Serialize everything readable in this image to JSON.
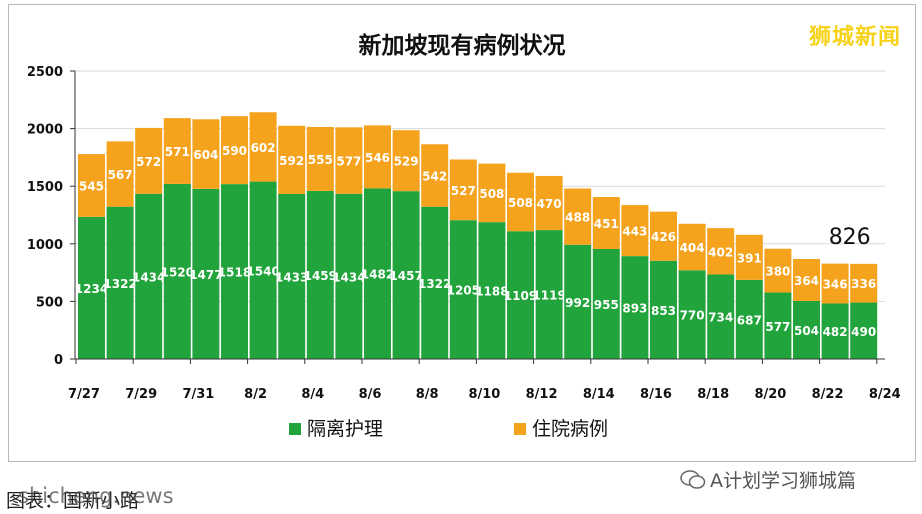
{
  "brand": "狮城新闻",
  "wechat_account": "A计划学习狮城篇",
  "source_line": "图表：国新小路",
  "source_watermark": "shicheng.news",
  "colors": {
    "isolation": "#21a43b",
    "hospital": "#f5a21d",
    "text_white": "#ffffff"
  },
  "chart_data": {
    "type": "bar",
    "stacked": true,
    "title": "新加坡现有病例状况",
    "xlabel": "",
    "ylabel": "",
    "ylim": [
      0,
      2500
    ],
    "yticks": [
      0,
      500,
      1000,
      1500,
      2000,
      2500
    ],
    "xtick_labels": [
      "7/27",
      "7/29",
      "7/31",
      "8/2",
      "8/4",
      "8/6",
      "8/8",
      "8/10",
      "8/12",
      "8/14",
      "8/16",
      "8/18",
      "8/20",
      "8/22",
      "8/24"
    ],
    "categories": [
      "7/27",
      "7/28",
      "7/29",
      "7/30",
      "7/31",
      "8/1",
      "8/2",
      "8/3",
      "8/4",
      "8/5",
      "8/6",
      "8/7",
      "8/8",
      "8/9",
      "8/10",
      "8/11",
      "8/12",
      "8/13",
      "8/14",
      "8/15",
      "8/16",
      "8/17",
      "8/18",
      "8/19",
      "8/20",
      "8/21",
      "8/22",
      "8/23"
    ],
    "series": [
      {
        "name": "隔离护理",
        "values": [
          1234,
          1322,
          1434,
          1520,
          1477,
          1518,
          1540,
          1433,
          1459,
          1434,
          1482,
          1457,
          1322,
          1205,
          1188,
          1109,
          1119,
          992,
          955,
          893,
          853,
          770,
          734,
          687,
          577,
          504,
          482,
          490
        ]
      },
      {
        "name": "住院病例",
        "values": [
          545,
          567,
          572,
          571,
          604,
          590,
          602,
          592,
          555,
          577,
          546,
          529,
          542,
          527,
          508,
          508,
          470,
          488,
          451,
          443,
          426,
          404,
          402,
          391,
          380,
          364,
          346,
          336
        ]
      }
    ],
    "annotation": {
      "category": "8/23",
      "text": "826"
    },
    "grid": true,
    "legend": "bottom"
  }
}
